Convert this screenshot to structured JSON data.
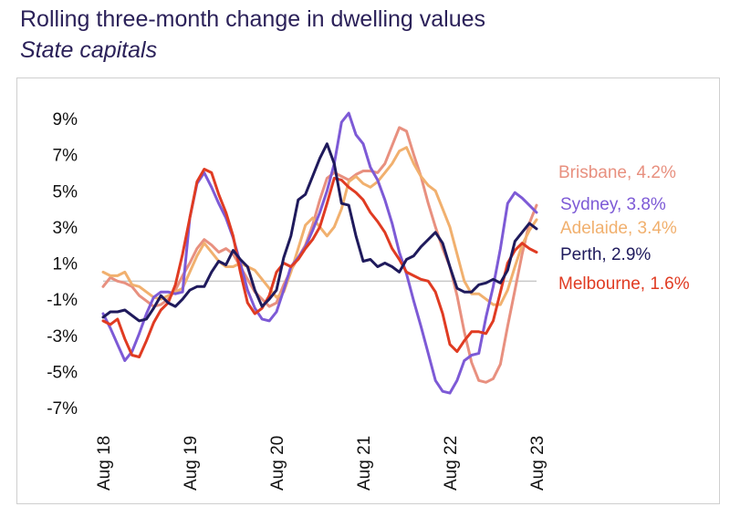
{
  "header": {
    "title": "Rolling three-month change in dwelling values",
    "subtitle": "State capitals"
  },
  "chart_data": {
    "type": "line",
    "title": "Rolling three-month change in dwelling values",
    "subtitle": "State capitals",
    "xlabel": "",
    "ylabel": "",
    "ylim": [
      -7,
      9.9
    ],
    "y_ticks": [
      9,
      7,
      5,
      3,
      1,
      -1,
      -3,
      -5,
      -7
    ],
    "y_tick_labels": [
      "9%",
      "7%",
      "5%",
      "3%",
      "1%",
      "-1%",
      "-3%",
      "-5%",
      "-7%"
    ],
    "x_tick_labels": [
      "Aug 18",
      "Aug 19",
      "Aug 20",
      "Aug 21",
      "Aug 22",
      "Aug 23"
    ],
    "x_tick_index": [
      0,
      12,
      24,
      36,
      48,
      60
    ],
    "x_range": [
      0,
      60
    ],
    "zero_line": true,
    "grid": false,
    "legend_position": "right",
    "series": [
      {
        "name": "Brisbane",
        "label": "Brisbane, 4.2%",
        "color": "#e8907f",
        "values": [
          -0.3,
          0.2,
          0,
          -0.1,
          -0.3,
          -0.8,
          -1.1,
          -1.4,
          -1.3,
          -1,
          -0.5,
          0.3,
          1,
          1.8,
          2.3,
          2,
          1.6,
          1.8,
          1.5,
          0.8,
          0.1,
          -0.6,
          -1,
          -1.4,
          -1.2,
          -0.2,
          0.6,
          1.3,
          2,
          3.1,
          4.5,
          5.7,
          6,
          5.8,
          5.6,
          5.9,
          6.1,
          6.1,
          6,
          6.5,
          7.5,
          8.5,
          8.3,
          7,
          5.8,
          4.3,
          3,
          1.8,
          0.8,
          -0.8,
          -2.8,
          -4.5,
          -5.5,
          -5.6,
          -5.4,
          -4.6,
          -2.5,
          -0.5,
          1.5,
          3.2,
          4.2
        ]
      },
      {
        "name": "Sydney",
        "label": "Sydney, 3.8%",
        "color": "#7d5ad6",
        "values": [
          -1.8,
          -2.6,
          -3.5,
          -4.4,
          -3.9,
          -2.9,
          -1.8,
          -0.9,
          -0.6,
          -0.6,
          -0.7,
          -0.6,
          3.5,
          5.4,
          6,
          5.2,
          4.3,
          3.5,
          2.4,
          1,
          -0.5,
          -1.5,
          -2.1,
          -2.2,
          -1.7,
          -0.5,
          0.8,
          1.3,
          1.9,
          2.8,
          3.8,
          5,
          6.5,
          8.8,
          9.3,
          8.1,
          7.6,
          6.3,
          5.6,
          4.5,
          3.2,
          1.6,
          0.4,
          -1.1,
          -2.5,
          -4,
          -5.5,
          -6.1,
          -6.2,
          -5.5,
          -4.4,
          -4.1,
          -4,
          -2,
          -0.3,
          1.8,
          4.3,
          4.9,
          4.6,
          4.2,
          3.8
        ]
      },
      {
        "name": "Adelaide",
        "label": "Adelaide, 3.4%",
        "color": "#f1b06e",
        "values": [
          0.5,
          0.3,
          0.3,
          0.5,
          -0.2,
          -0.3,
          -0.6,
          -0.9,
          -1,
          -0.8,
          -0.6,
          -0.4,
          0.5,
          1.4,
          2.1,
          1.6,
          1.1,
          0.8,
          0.8,
          1,
          0.8,
          0.6,
          0.1,
          -0.4,
          -0.9,
          -0.6,
          0.5,
          1.8,
          3.1,
          3.5,
          3,
          2.5,
          3,
          4,
          5.5,
          5.8,
          5.4,
          5.2,
          5.5,
          6,
          6.5,
          7.2,
          7.4,
          6.5,
          5.8,
          5.3,
          5,
          4,
          3,
          1.5,
          0,
          -0.7,
          -0.7,
          -1,
          -1.3,
          -1.3,
          -0.5,
          0.8,
          2,
          2.8,
          3.4
        ]
      },
      {
        "name": "Perth",
        "label": "Perth, 2.9%",
        "color": "#1f1a5c",
        "values": [
          -2,
          -1.7,
          -1.7,
          -1.6,
          -1.9,
          -2.2,
          -2.1,
          -1.5,
          -0.8,
          -1.2,
          -1.4,
          -1,
          -0.5,
          -0.3,
          -0.3,
          0.5,
          1.1,
          0.9,
          1.7,
          1.2,
          0.8,
          -0.5,
          -1.4,
          -1,
          -0.5,
          1.3,
          2.5,
          4.5,
          4.8,
          5.8,
          6.8,
          7.6,
          6.5,
          4.3,
          4.2,
          2.5,
          1.1,
          1.2,
          0.8,
          1,
          0.8,
          0.5,
          1.2,
          1.4,
          1.9,
          2.3,
          2.7,
          2.1,
          0.8,
          -0.4,
          -0.6,
          -0.6,
          -0.2,
          -0.1,
          0.1,
          -0.1,
          0.6,
          2.2,
          2.7,
          3.2,
          2.9
        ]
      },
      {
        "name": "Melbourne",
        "label": "Melbourne, 1.6%",
        "color": "#e03b22",
        "values": [
          -2.2,
          -2.4,
          -2.1,
          -3.2,
          -4.1,
          -4.2,
          -3.3,
          -2.3,
          -1.6,
          -1.2,
          -0.2,
          1.5,
          3.5,
          5.5,
          6.2,
          6,
          4.8,
          3.8,
          2.5,
          0.5,
          -1.2,
          -1.8,
          -1.5,
          -0.8,
          0.5,
          1,
          0.8,
          1.2,
          1.8,
          2.3,
          3,
          4.3,
          5.7,
          5.6,
          5.2,
          4.9,
          4.5,
          3.8,
          3.3,
          2.7,
          1.8,
          1.2,
          0.5,
          0.3,
          0.1,
          0,
          -0.6,
          -1.8,
          -3.5,
          -3.9,
          -3.3,
          -2.8,
          -2.8,
          -2.9,
          -2.2,
          -0.6,
          1,
          1.7,
          2.1,
          1.8,
          1.6
        ]
      }
    ]
  }
}
